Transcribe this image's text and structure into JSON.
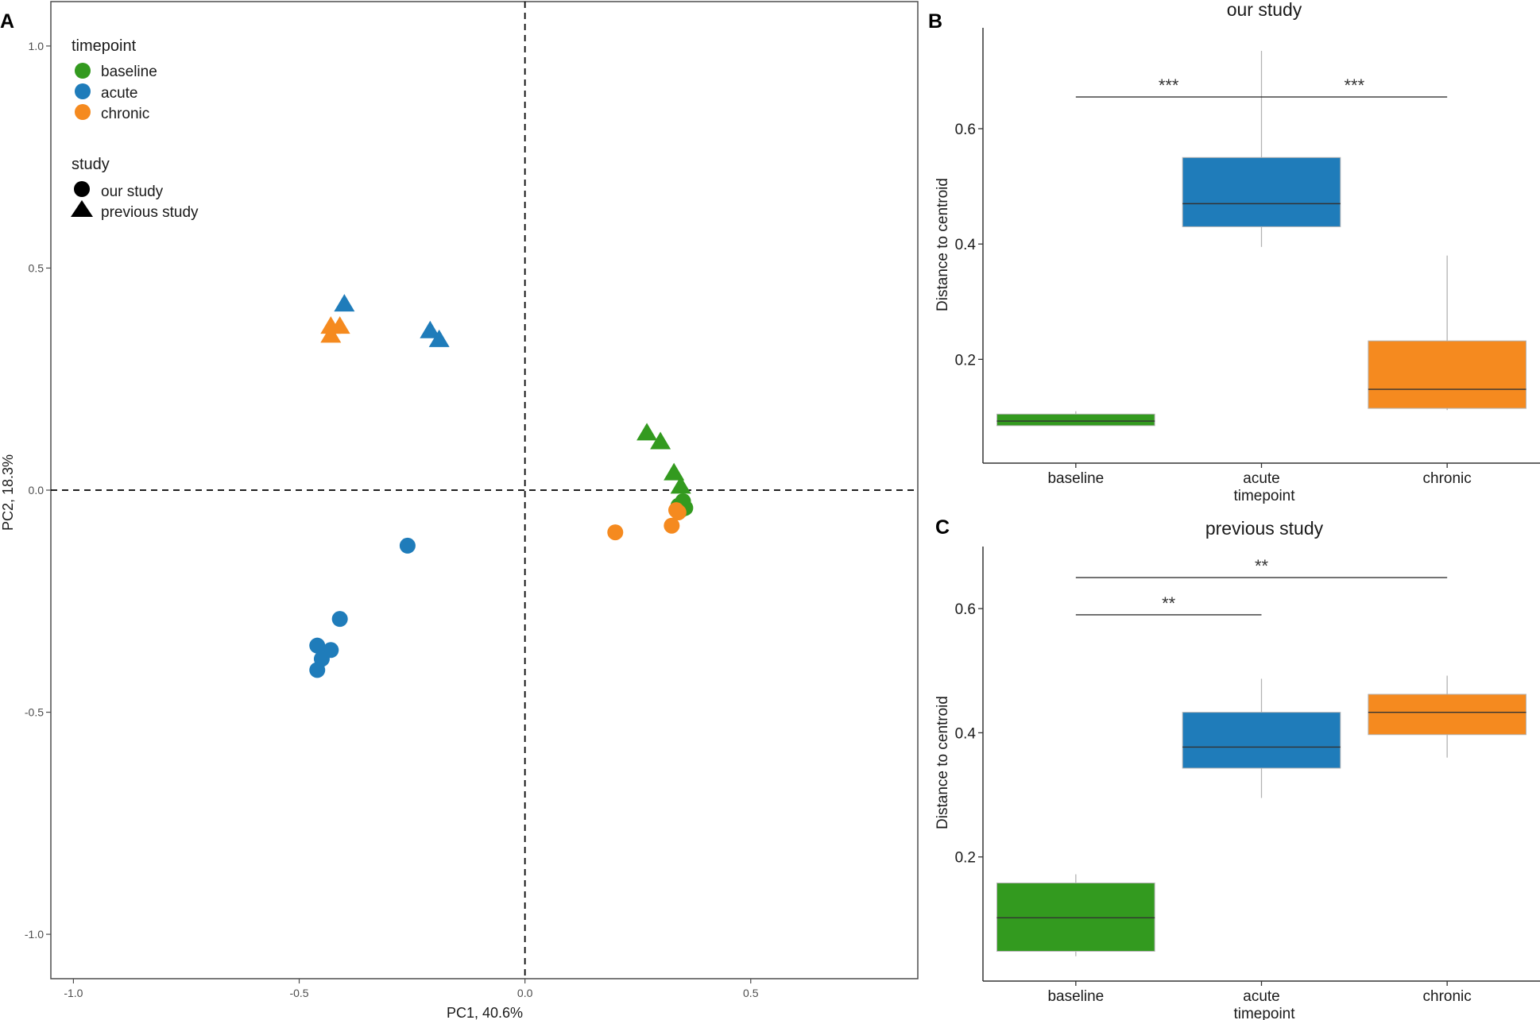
{
  "panels": {
    "a": "A",
    "b": "B",
    "c": "C"
  },
  "colors": {
    "baseline": "#339a1f",
    "acute": "#1f7cba",
    "chronic": "#f58a1f"
  },
  "chart_data": [
    {
      "type": "scatter",
      "xlabel": "PC1, 40.6%",
      "ylabel": "PC2, 18.3%",
      "xlim": [
        -1.05,
        0.87
      ],
      "ylim": [
        -1.1,
        1.1
      ],
      "xticks": [
        "-1.0",
        "-0.5",
        "0.0",
        "0.5"
      ],
      "yticks": [
        "-1.0",
        "-0.5",
        "0.0",
        "0.5",
        "1.0"
      ],
      "reference_lines": {
        "x": 0,
        "y": 0,
        "style": "dashed"
      },
      "legend": {
        "timepoint_title": "timepoint",
        "timepoint_items": [
          "baseline",
          "acute",
          "chronic"
        ],
        "study_title": "study",
        "study_items": [
          "our study",
          "previous study"
        ]
      },
      "series": [
        {
          "name": "baseline / our study",
          "group": "baseline",
          "shape": "circle",
          "points": [
            [
              0.35,
              -0.03
            ],
            [
              0.355,
              -0.04
            ],
            [
              0.34,
              -0.035
            ],
            [
              0.345,
              -0.045
            ],
            [
              0.35,
              -0.025
            ]
          ]
        },
        {
          "name": "baseline / previous study",
          "group": "baseline",
          "shape": "triangle",
          "points": [
            [
              0.27,
              0.13
            ],
            [
              0.3,
              0.11
            ],
            [
              0.33,
              0.04
            ],
            [
              0.345,
              0.01
            ]
          ]
        },
        {
          "name": "acute / our study",
          "group": "acute",
          "shape": "circle",
          "points": [
            [
              -0.26,
              -0.125
            ],
            [
              -0.41,
              -0.29
            ],
            [
              -0.46,
              -0.35
            ],
            [
              -0.43,
              -0.36
            ],
            [
              -0.45,
              -0.38
            ],
            [
              -0.46,
              -0.405
            ]
          ]
        },
        {
          "name": "acute / previous study",
          "group": "acute",
          "shape": "triangle",
          "points": [
            [
              -0.4,
              0.42
            ],
            [
              -0.21,
              0.36
            ],
            [
              -0.19,
              0.34
            ]
          ]
        },
        {
          "name": "chronic / our study",
          "group": "chronic",
          "shape": "circle",
          "points": [
            [
              0.2,
              -0.095
            ],
            [
              0.325,
              -0.08
            ],
            [
              0.34,
              -0.05
            ],
            [
              0.335,
              -0.045
            ]
          ]
        },
        {
          "name": "chronic / previous study",
          "group": "chronic",
          "shape": "triangle",
          "points": [
            [
              -0.43,
              0.37
            ],
            [
              -0.41,
              0.37
            ],
            [
              -0.43,
              0.35
            ]
          ]
        }
      ]
    },
    {
      "type": "box",
      "title": "our study",
      "xlabel": "timepoint",
      "ylabel": "Distance to centroid",
      "ylim": [
        0.02,
        0.775
      ],
      "yticks": [
        "0.2",
        "0.4",
        "0.6"
      ],
      "categories": [
        "baseline",
        "acute",
        "chronic"
      ],
      "boxes": [
        {
          "group": "baseline",
          "whisker_low": 0.085,
          "q1": 0.085,
          "median": 0.093,
          "q3": 0.105,
          "whisker_high": 0.11
        },
        {
          "group": "acute",
          "whisker_low": 0.395,
          "q1": 0.43,
          "median": 0.47,
          "q3": 0.55,
          "whisker_high": 0.735
        },
        {
          "group": "chronic",
          "whisker_low": 0.112,
          "q1": 0.115,
          "median": 0.148,
          "q3": 0.232,
          "whisker_high": 0.38
        }
      ],
      "significance": [
        {
          "from": "baseline",
          "to": "acute",
          "y": 0.655,
          "label": "***"
        },
        {
          "from": "acute",
          "to": "chronic",
          "y": 0.655,
          "label": "***"
        }
      ]
    },
    {
      "type": "box",
      "title": "previous study",
      "xlabel": "timepoint",
      "ylabel": "Distance to centroid",
      "ylim": [
        0.0,
        0.7
      ],
      "yticks": [
        "0.2",
        "0.4",
        "0.6"
      ],
      "categories": [
        "baseline",
        "acute",
        "chronic"
      ],
      "boxes": [
        {
          "group": "baseline",
          "whisker_low": 0.04,
          "q1": 0.048,
          "median": 0.102,
          "q3": 0.158,
          "whisker_high": 0.172
        },
        {
          "group": "acute",
          "whisker_low": 0.295,
          "q1": 0.343,
          "median": 0.377,
          "q3": 0.433,
          "whisker_high": 0.487
        },
        {
          "group": "chronic",
          "whisker_low": 0.36,
          "q1": 0.397,
          "median": 0.433,
          "q3": 0.462,
          "whisker_high": 0.492
        }
      ],
      "significance": [
        {
          "from": "baseline",
          "to": "chronic",
          "y": 0.65,
          "label": "**"
        },
        {
          "from": "baseline",
          "to": "acute",
          "y": 0.59,
          "label": "**"
        }
      ]
    }
  ]
}
